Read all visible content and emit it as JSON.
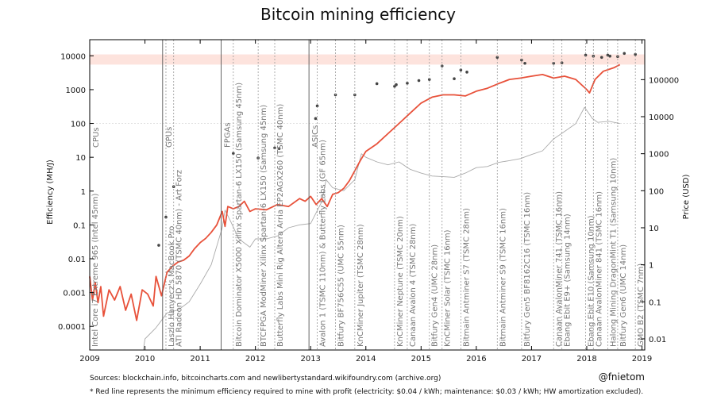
{
  "chart_data": {
    "type": "line",
    "title": "Bitcoin mining efficiency",
    "xlabel": "",
    "ylabel": "Efficiency (MH/J)",
    "y2label": "Price (USD)",
    "xlim": [
      2009.0,
      2019.05
    ],
    "ylim": [
      2e-05,
      30000
    ],
    "y2lim": [
      0.005,
      1200000
    ],
    "x_ticks": [
      "2009",
      "2010",
      "2011",
      "2012",
      "2013",
      "2014",
      "2015",
      "2016",
      "2017",
      "2018",
      "2019"
    ],
    "y_ticks": [
      "0.0001",
      "0.001",
      "0.01",
      "0.1",
      "1",
      "10",
      "100",
      "1000",
      "10000"
    ],
    "y2_ticks": [
      "0.01",
      "0.1",
      "1",
      "10",
      "100",
      "1000",
      "10000",
      "100000"
    ],
    "band": {
      "from": 5500,
      "to": 11000
    },
    "eras": [
      {
        "label": "CPUs",
        "x": 2009.0
      },
      {
        "label": "GPUs",
        "x": 2010.32
      },
      {
        "label": "FPGAs",
        "x": 2011.38
      },
      {
        "label": "ASICs",
        "x": 2012.97
      }
    ],
    "hardware": [
      {
        "name": "Intel Core i7 Extreme 965 (Intel 45nm)",
        "x": 2009.0,
        "y": 0.03
      },
      {
        "name": "Laszlo Hanyecz's MacBook Pro",
        "x": 2010.38,
        "y": 0.17
      },
      {
        "name": "ATI Radeon HD 5870 (TSMC 40nm) - Art Forz",
        "x": 2010.52,
        "y": 1.35
      },
      {
        "name": "Bitcoin Dominator X5000 Xilinx Spartan-6 LX150 (Samsung 45nm)",
        "x": 2011.6,
        "y": 13
      },
      {
        "name": "BTCFPGA ModMiner Xilinx Spartan-6 LX150 (Samsung 45nm)",
        "x": 2012.05,
        "y": 9.5
      },
      {
        "name": "Butterfly Labs Mini Rig Altera Arria EP2AGX260 (TSMC 40nm)",
        "x": 2012.35,
        "y": 19
      },
      {
        "name": "Avalon 1 (TSMC 110nm) & Butterfly Labs (GF 65nm)",
        "x": 2013.12,
        "y": 330
      },
      {
        "name": "Bitfury BF756C55 (UMC 55nm)",
        "x": 2013.45,
        "y": 700
      },
      {
        "name": "KnCMiner Jupiter (TSMC 28nm)",
        "x": 2013.8,
        "y": 700
      },
      {
        "name": "KnCMiner Neptune (TSMC 20nm)",
        "x": 2014.52,
        "y": 1250
      },
      {
        "name": "Canaan Avalon 4 (TSMC 28nm)",
        "x": 2014.75,
        "y": 1550
      },
      {
        "name": "Bitfury Gen4 (UMC 28nm)",
        "x": 2015.15,
        "y": 2000
      },
      {
        "name": "KnCMiner Solar (TSMC 16nm)",
        "x": 2015.38,
        "y": 5000
      },
      {
        "name": "Bitmain Antminer S7 (TSMC 28nm)",
        "x": 2015.72,
        "y": 3800
      },
      {
        "name": "Bitmain Antminer S9 (TSMC 16nm)",
        "x": 2016.38,
        "y": 9000
      },
      {
        "name": "Bitfury Gen5 BF8162C16 (TSMC 16nm)",
        "x": 2016.82,
        "y": 7500
      },
      {
        "name": "Canaan AvalonMiner 741 (TSMC 16nm)",
        "x": 2017.4,
        "y": 6000
      },
      {
        "name": "Ebang Ebit E9+ (Samsung 14nm)",
        "x": 2017.55,
        "y": 6200
      },
      {
        "name": "Ebang Ebit E10 (Samsung 10nm)",
        "x": 2017.98,
        "y": 10500
      },
      {
        "name": "Canaan AvalonMiner 841 (TSMC 16nm)",
        "x": 2018.12,
        "y": 9800
      },
      {
        "name": "Halong Mining DragonMint T1 (Samsung 10nm)",
        "x": 2018.38,
        "y": 10500
      },
      {
        "name": "Bitfury Gen6 (UMC 14nm)",
        "x": 2018.56,
        "y": 9500
      },
      {
        "name": "GMO B2 (TSMC 7nm)",
        "x": 2018.88,
        "y": 11000
      }
    ],
    "extra_points": [
      {
        "x": 2010.25,
        "y": 0.025
      },
      {
        "x": 2012.43,
        "y": 18
      },
      {
        "x": 2013.09,
        "y": 140
      },
      {
        "x": 2014.2,
        "y": 1500
      },
      {
        "x": 2014.55,
        "y": 1400
      },
      {
        "x": 2014.96,
        "y": 1850
      },
      {
        "x": 2015.6,
        "y": 2100
      },
      {
        "x": 2015.83,
        "y": 3300
      },
      {
        "x": 2016.88,
        "y": 6000
      },
      {
        "x": 2018.27,
        "y": 9000
      },
      {
        "x": 2018.42,
        "y": 9800
      },
      {
        "x": 2018.68,
        "y": 11800
      }
    ],
    "series": [
      {
        "name": "Minimum efficiency required to mine with profit",
        "color": "#e8513a",
        "axis": "left",
        "x": [
          2009.0,
          2009.05,
          2009.1,
          2009.15,
          2009.2,
          2009.25,
          2009.35,
          2009.45,
          2009.55,
          2009.65,
          2009.75,
          2009.85,
          2009.95,
          2010.05,
          2010.15,
          2010.2,
          2010.3,
          2010.4,
          2010.5,
          2010.6,
          2010.7,
          2010.8,
          2010.9,
          2011.0,
          2011.1,
          2011.2,
          2011.3,
          2011.4,
          2011.45,
          2011.5,
          2011.6,
          2011.7,
          2011.8,
          2011.9,
          2012.0,
          2012.2,
          2012.4,
          2012.6,
          2012.8,
          2012.9,
          2013.0,
          2013.1,
          2013.2,
          2013.3,
          2013.4,
          2013.5,
          2013.6,
          2013.7,
          2013.8,
          2013.9,
          2014.0,
          2014.2,
          2014.4,
          2014.6,
          2014.8,
          2015.0,
          2015.2,
          2015.4,
          2015.6,
          2015.8,
          2016.0,
          2016.2,
          2016.4,
          2016.6,
          2016.8,
          2017.0,
          2017.2,
          2017.4,
          2017.6,
          2017.8,
          2018.0,
          2018.05,
          2018.15,
          2018.3,
          2018.5,
          2018.6
        ],
        "values": [
          0.003,
          0.0006,
          0.002,
          0.0005,
          0.0015,
          0.0002,
          0.0012,
          0.0006,
          0.0015,
          0.0003,
          0.0009,
          0.00015,
          0.0012,
          0.0009,
          0.0004,
          0.003,
          0.0008,
          0.004,
          0.006,
          0.008,
          0.009,
          0.012,
          0.02,
          0.03,
          0.04,
          0.06,
          0.1,
          0.25,
          0.09,
          0.35,
          0.3,
          0.35,
          0.5,
          0.25,
          0.3,
          0.28,
          0.4,
          0.35,
          0.6,
          0.5,
          0.7,
          0.4,
          0.6,
          0.35,
          0.8,
          0.9,
          1.2,
          2,
          4,
          8,
          15,
          25,
          50,
          100,
          200,
          400,
          600,
          700,
          700,
          650,
          900,
          1100,
          1500,
          2000,
          2200,
          2500,
          2800,
          2200,
          2500,
          2000,
          1000,
          800,
          2000,
          3500,
          4500,
          5500
        ]
      },
      {
        "name": "Price (USD)",
        "color": "#aaaaaa",
        "axis": "right",
        "x": [
          2009.97,
          2010.0,
          2010.2,
          2010.4,
          2010.6,
          2010.8,
          2011.0,
          2011.2,
          2011.4,
          2011.45,
          2011.55,
          2011.7,
          2011.9,
          2012.0,
          2012.2,
          2012.4,
          2012.6,
          2012.8,
          2013.0,
          2013.2,
          2013.28,
          2013.4,
          2013.6,
          2013.8,
          2013.92,
          2014.0,
          2014.2,
          2014.4,
          2014.6,
          2014.8,
          2015.0,
          2015.2,
          2015.4,
          2015.6,
          2015.8,
          2016.0,
          2016.2,
          2016.4,
          2016.6,
          2016.8,
          2017.0,
          2017.2,
          2017.4,
          2017.6,
          2017.8,
          2017.96,
          2018.1,
          2018.2,
          2018.4,
          2018.6
        ],
        "values": [
          0.005,
          0.01,
          0.02,
          0.05,
          0.06,
          0.1,
          0.3,
          1,
          10,
          30,
          15,
          5,
          3,
          5,
          5,
          6,
          10,
          12,
          13,
          50,
          200,
          120,
          100,
          200,
          1000,
          800,
          600,
          500,
          600,
          380,
          300,
          250,
          240,
          230,
          300,
          420,
          450,
          580,
          650,
          740,
          950,
          1200,
          2500,
          4000,
          6500,
          18000,
          9000,
          7000,
          7500,
          6500
        ]
      }
    ],
    "sources": "Sources: blockchain.info, bitcoincharts.com and newlibertystandard.wikifoundry.com (archive.org)",
    "handle": "@fnietom",
    "footnote": "* Red line represents the minimum efficiency required to mine with profit (electricity: $0.04 / kWh; maintenance: $0.03 / kWh; HW amortization excluded)."
  }
}
